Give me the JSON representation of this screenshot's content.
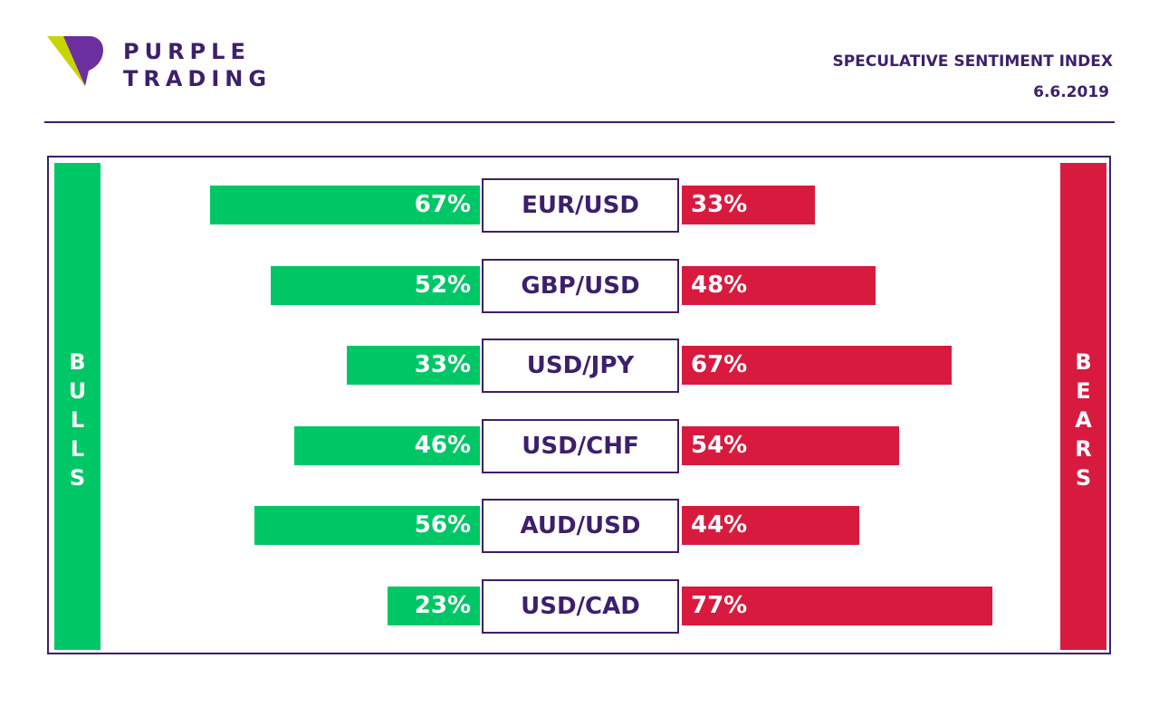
{
  "brand": {
    "line1": "PURPLE",
    "line2": "TRADING",
    "logo": "purple-trading-logo"
  },
  "header": {
    "title": "SPECULATIVE SENTIMENT INDEX",
    "date": "6.6.2019"
  },
  "sides": {
    "bulls": [
      "B",
      "U",
      "L",
      "L",
      "S"
    ],
    "bears": [
      "B",
      "E",
      "A",
      "R",
      "S"
    ]
  },
  "colors": {
    "bulls": "#00c766",
    "bears": "#d91a3f",
    "accent": "#3d1f6d"
  },
  "chart_data": {
    "type": "bar",
    "categories": [
      "EUR/USD",
      "GBP/USD",
      "USD/JPY",
      "USD/CHF",
      "AUD/USD",
      "USD/CAD"
    ],
    "series": [
      {
        "name": "BULLS",
        "values": [
          67,
          52,
          33,
          46,
          56,
          23
        ]
      },
      {
        "name": "BEARS",
        "values": [
          33,
          48,
          67,
          54,
          44,
          77
        ]
      }
    ],
    "bull_labels": [
      "67%",
      "52%",
      "33%",
      "46%",
      "56%",
      "23%"
    ],
    "bear_labels": [
      "33%",
      "48%",
      "67%",
      "54%",
      "44%",
      "77%"
    ],
    "ylim": [
      0,
      100
    ]
  }
}
